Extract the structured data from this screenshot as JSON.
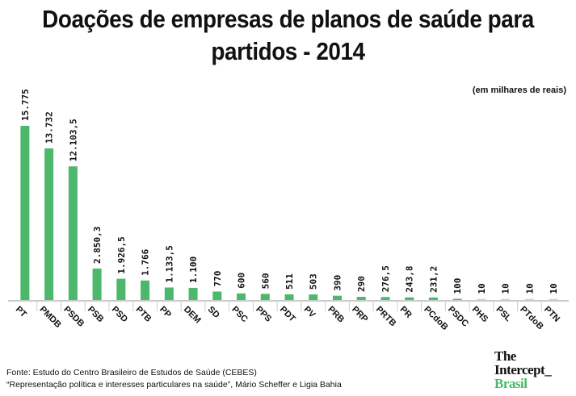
{
  "chart_data": {
    "type": "bar",
    "title": "Doações de empresas de planos de saúde para partidos - 2014",
    "unit_note": "(em milhares de reais)",
    "categories": [
      "PT",
      "PMDB",
      "PSDB",
      "PSB",
      "PSD",
      "PTB",
      "PP",
      "DEM",
      "SD",
      "PSC",
      "PPS",
      "PDT",
      "PV",
      "PRB",
      "PRP",
      "PRTB",
      "PR",
      "PCdoB",
      "PSDC",
      "PHS",
      "PSL",
      "PTdoB",
      "PTN"
    ],
    "values": [
      15775,
      13732,
      12103.5,
      2850.3,
      1926.5,
      1766,
      1133.5,
      1100,
      770,
      600,
      560,
      511,
      503,
      390,
      290,
      276.5,
      243.8,
      231.2,
      100,
      10,
      10,
      10,
      10
    ],
    "data_labels": [
      "15.775",
      "13.732",
      "12.103,5",
      "2.850,3",
      "1.926,5",
      "1.766",
      "1.133,5",
      "1.100",
      "770",
      "600",
      "560",
      "511",
      "503",
      "390",
      "290",
      "276,5",
      "243,8",
      "231,2",
      "100",
      "10",
      "10",
      "10",
      "10"
    ],
    "bar_color": "#4cb86c",
    "grid": false,
    "legend": "none"
  },
  "source": {
    "line1": "Fonte: Estudo do Centro Brasileiro de Estudos de Saúde (CEBES)",
    "line2": "“Representação política e interesses particulares na saúde”, Mário Scheffer e Ligia Bahia"
  },
  "logo": {
    "line1": "The",
    "line2": "Intercept_",
    "line3": "Brasil"
  }
}
